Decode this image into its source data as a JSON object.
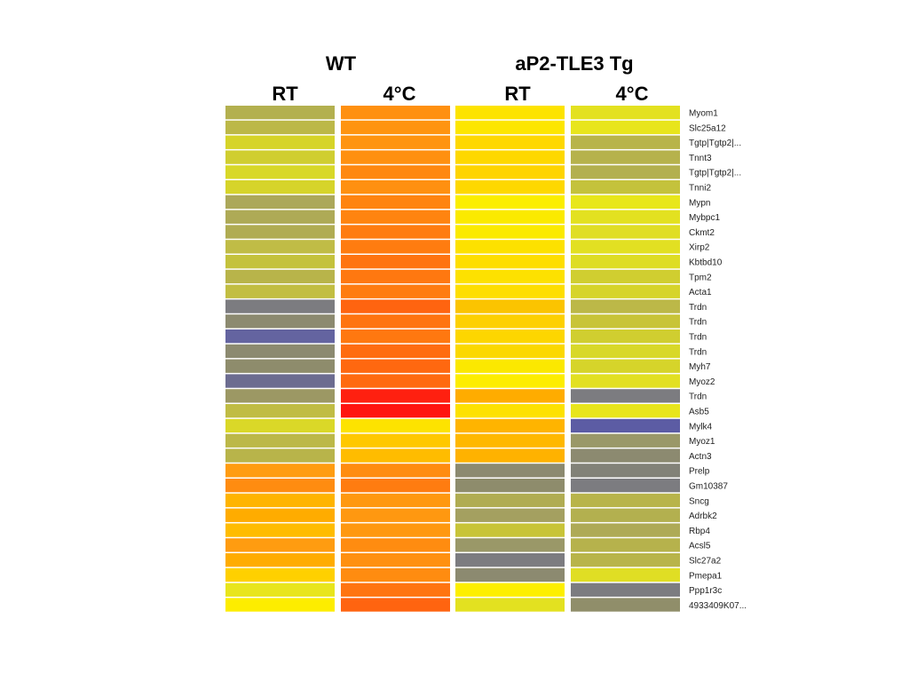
{
  "chart_data": {
    "type": "heatmap",
    "groups": [
      {
        "label": "WT",
        "columns": [
          "RT",
          "4°C"
        ]
      },
      {
        "label": "aP2-TLE3 Tg",
        "columns": [
          "RT",
          "4°C"
        ]
      }
    ],
    "columns": [
      "RT",
      "4°C",
      "RT",
      "4°C"
    ],
    "rows": [
      "Myom1",
      "Slc25a12",
      "Tgtp|Tgtp2|...",
      "Tnnt3",
      "Tgtp|Tgtp2|...",
      "Tnni2",
      "Mypn",
      "Mybpc1",
      "Ckmt2",
      "Xirp2",
      "Kbtbd10",
      "Tpm2",
      "Acta1",
      "Trdn",
      "Trdn",
      "Trdn",
      "Trdn",
      "Myh7",
      "Myoz2",
      "Trdn",
      "Asb5",
      "Mylk4",
      "Myoz1",
      "Actn3",
      "Prelp",
      "Gm10387",
      "Sncg",
      "Adrbk2",
      "Rbp4",
      "Acsl5",
      "Slc27a2",
      "Pmepa1",
      "Ppp1r3c",
      "4933409K07..."
    ],
    "cell_colors": [
      [
        "#b3b04f",
        "#ff9010",
        "#fde300",
        "#e3e120"
      ],
      [
        "#bcb848",
        "#ff9410",
        "#fde600",
        "#e8e51c"
      ],
      [
        "#d6d428",
        "#ff9410",
        "#fed800",
        "#b8b44a"
      ],
      [
        "#d0ce30",
        "#ff9010",
        "#fed800",
        "#b6b24c"
      ],
      [
        "#d8d828",
        "#ff8810",
        "#fed400",
        "#b3b04f"
      ],
      [
        "#d6d42a",
        "#ff9010",
        "#fed800",
        "#c4c23c"
      ],
      [
        "#aca85a",
        "#ff8410",
        "#fbee00",
        "#e8e71a"
      ],
      [
        "#aeaa56",
        "#ff8410",
        "#fbea00",
        "#e3e120"
      ],
      [
        "#b0ac52",
        "#ff7c10",
        "#fbea00",
        "#e0de24"
      ],
      [
        "#c0bc46",
        "#ff7c10",
        "#fde100",
        "#e2e022"
      ],
      [
        "#c4c23c",
        "#ff7410",
        "#fede00",
        "#dedd24"
      ],
      [
        "#b8b44a",
        "#ff7810",
        "#fde100",
        "#d0ce30"
      ],
      [
        "#c2be42",
        "#ff7c10",
        "#fede00",
        "#d6d42a"
      ],
      [
        "#7c7c80",
        "#ff6410",
        "#fbc400",
        "#bcb848"
      ],
      [
        "#8c8a70",
        "#ff7410",
        "#fdd000",
        "#c8c438"
      ],
      [
        "#6464a0",
        "#ff7810",
        "#fdd600",
        "#d0ce30"
      ],
      [
        "#8c8a70",
        "#ff6c10",
        "#fbd800",
        "#d8d828"
      ],
      [
        "#8e8c6c",
        "#ff6810",
        "#fbe800",
        "#d6d42a"
      ],
      [
        "#6c6c90",
        "#ff6a10",
        "#fded00",
        "#e2e022"
      ],
      [
        "#9c9864",
        "#ff2010",
        "#ffac00",
        "#7c7c80"
      ],
      [
        "#c0bc44",
        "#ff1410",
        "#fde100",
        "#e8e51c"
      ],
      [
        "#dad828",
        "#fde300",
        "#ffb400",
        "#5c5ca4"
      ],
      [
        "#bcb848",
        "#ffc800",
        "#ffb800",
        "#9a9868"
      ],
      [
        "#b8b44a",
        "#ffbc00",
        "#ffb200",
        "#8c8a70"
      ],
      [
        "#ff9c10",
        "#ff8c10",
        "#8c8a70",
        "#828278"
      ],
      [
        "#ff8c10",
        "#ff7c10",
        "#8e8c6c",
        "#7c7c80"
      ],
      [
        "#ffb400",
        "#ff9810",
        "#b0ac52",
        "#b8b44a"
      ],
      [
        "#ffac00",
        "#ff9810",
        "#a4a060",
        "#b3b04f"
      ],
      [
        "#ffbc00",
        "#ff9810",
        "#c8c438",
        "#aeaa56"
      ],
      [
        "#ff9c10",
        "#ff8c10",
        "#9a9868",
        "#b6b24c"
      ],
      [
        "#ffac00",
        "#ff9010",
        "#7c7c80",
        "#b8b44a"
      ],
      [
        "#ffd000",
        "#ff8c10",
        "#8c8a70",
        "#e0de24"
      ],
      [
        "#e8e51c",
        "#ff7410",
        "#fdef00",
        "#7c7c80"
      ],
      [
        "#fded00",
        "#ff6410",
        "#e3e120",
        "#908e6a"
      ]
    ]
  }
}
